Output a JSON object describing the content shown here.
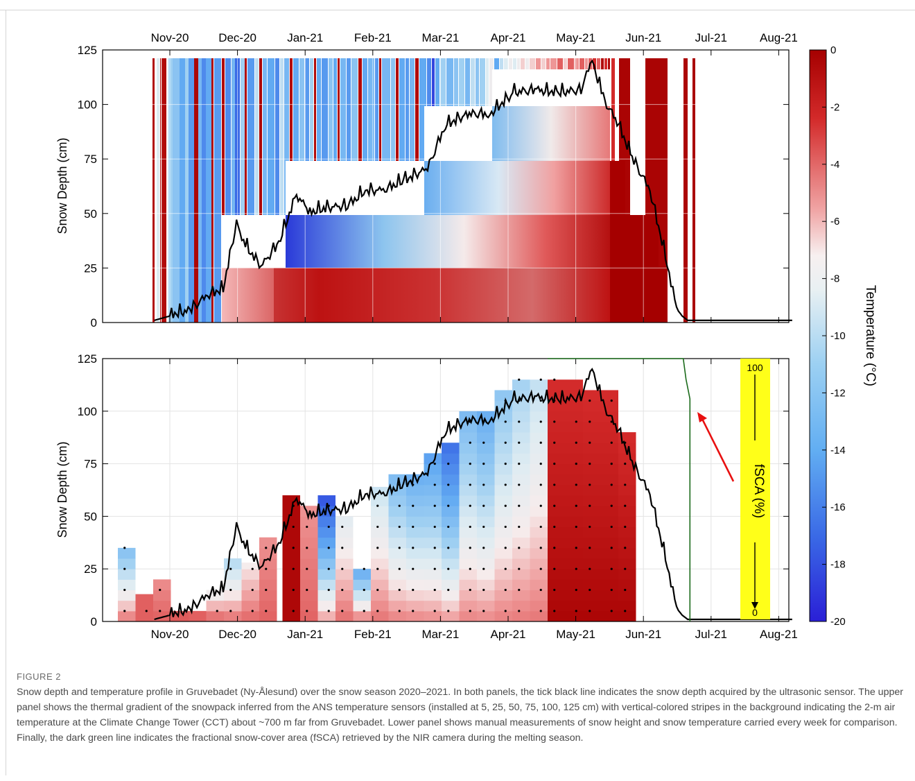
{
  "figure": {
    "label": "FIGURE 2",
    "caption": "Snow depth and temperature profile in Gruvebadet (Ny-Ålesund) over the snow season 2020–2021. In both panels, the tick black line indicates the snow depth acquired by the ultrasonic sensor. The upper panel shows the thermal gradient of the snowpack inferred from the ANS temperature sensors (installed at 5, 25, 50, 75, 100, 125 cm) with vertical-colored stripes in the background indicating the 2-m air temperature at the Climate Change Tower (CCT) about ~700 m far from Gruvebadet. Lower panel shows manual measurements of snow height and snow temperature carried every week for comparison. Finally, the dark green line indicates the fractional snow-cover area (fSCA) retrieved by the NIR camera during the melting season."
  },
  "colors": {
    "cold": "#2a1fd6",
    "mid": "#f2f2f2",
    "warm": "#a50000",
    "snow_line": "#000000",
    "fsca_line": "#1a6a1a",
    "fsca_box": "#ffff19",
    "arrow": "#e81010",
    "grid": "#e3e3e3"
  },
  "chart_data": [
    {
      "type": "heatmap",
      "panel": "upper",
      "ylabel": "Snow Depth (cm)",
      "ylim": [
        0,
        125
      ],
      "yticks": [
        0,
        25,
        50,
        75,
        100,
        125
      ],
      "x_tick_labels": [
        "Nov-20",
        "Dec-20",
        "Jan-21",
        "Feb-21",
        "Mar-21",
        "Apr-21",
        "May-21",
        "Jun-21",
        "Jul-21",
        "Aug-21"
      ],
      "x_tick_position": "top",
      "sensor_heights_cm": [
        5,
        25,
        50,
        75,
        100,
        125
      ],
      "grid": true,
      "series": [
        {
          "kind": "line",
          "x": [
            "2020-10-25",
            "2020-11-01",
            "2020-11-10",
            "2020-11-18",
            "2020-11-25",
            "2020-12-01",
            "2020-12-05",
            "2020-12-12",
            "2020-12-20",
            "2020-12-28",
            "2021-01-03",
            "2021-01-10",
            "2021-01-20",
            "2021-01-28",
            "2021-02-05",
            "2021-02-15",
            "2021-02-25",
            "2021-03-05",
            "2021-03-15",
            "2021-03-25",
            "2021-04-05",
            "2021-04-15",
            "2021-04-25",
            "2021-05-05",
            "2021-05-10",
            "2021-05-15",
            "2021-05-22",
            "2021-05-28",
            "2021-06-05",
            "2021-06-12",
            "2021-06-17",
            "2021-06-22",
            "2021-07-01",
            "2021-07-15",
            "2021-08-01",
            "2021-08-08"
          ],
          "y": [
            1,
            3,
            5,
            12,
            15,
            45,
            35,
            25,
            36,
            58,
            50,
            52,
            53,
            60,
            60,
            65,
            70,
            90,
            95,
            95,
            105,
            106,
            105,
            106,
            120,
            102,
            90,
            75,
            60,
            30,
            5,
            1,
            1,
            1,
            1,
            1
          ]
        }
      ],
      "colorbar": {
        "label": "Temperature (°C)",
        "range": [
          -20,
          0
        ],
        "ticks": [
          0,
          -2,
          -4,
          -6,
          -8,
          -10,
          -12,
          -14,
          -16,
          -18,
          -20
        ]
      }
    },
    {
      "type": "heatmap",
      "panel": "lower",
      "xlabel": "",
      "ylabel": "Snow Depth (cm)",
      "ylim": [
        0,
        125
      ],
      "yticks": [
        0,
        25,
        50,
        75,
        100,
        125
      ],
      "x_tick_labels": [
        "Nov-20",
        "Dec-20",
        "Jan-21",
        "Feb-21",
        "Mar-21",
        "Apr-21",
        "May-21",
        "Jun-21",
        "Jul-21",
        "Aug-21"
      ],
      "grid": true,
      "manual_profile_heights_cm": [
        36,
        13,
        20,
        5,
        5,
        15,
        30,
        28,
        40,
        62,
        55,
        60,
        50,
        26,
        64,
        70,
        72,
        80,
        85,
        100,
        102,
        110,
        116,
        116,
        116,
        115,
        112,
        110,
        90
      ],
      "fsca_line": {
        "name": "fSCA (%)",
        "scale_top": "100",
        "scale_bottom": "0",
        "melt_start": "2021-06-20",
        "melt_end": "2021-06-23"
      }
    }
  ]
}
